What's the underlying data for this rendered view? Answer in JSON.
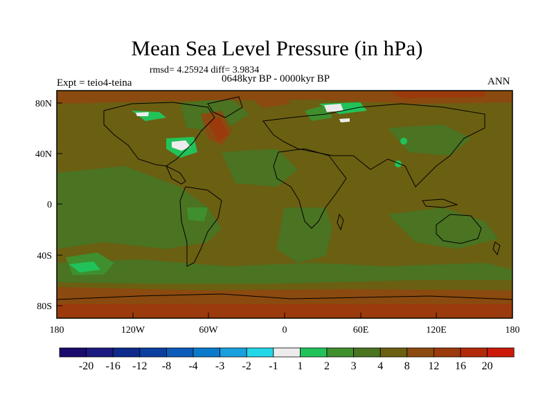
{
  "title": "Mean Sea Level Pressure (in hPa)",
  "stats_text": "rmsd= 4.25924 diff= 3.9834",
  "period_text": "0648kyr BP - 0000kyr BP",
  "expt_text": "Expt = teio4-teina",
  "season_text": "ANN",
  "x_ticks": [
    "180",
    "120W",
    "60W",
    "0",
    "60E",
    "120E",
    "180"
  ],
  "y_ticks": [
    "80N",
    "40N",
    "0",
    "40S",
    "80S"
  ],
  "colorbar": {
    "colors": [
      "#1a0a6b",
      "#1a1a80",
      "#0d2a8c",
      "#0a3fa0",
      "#0b5cb8",
      "#0a7bcc",
      "#1aa0dd",
      "#22d8e8",
      "#ececec",
      "#22c25a",
      "#3f8f2e",
      "#4a7322",
      "#6b5f12",
      "#8b4a0f",
      "#9b3a0c",
      "#b22a0a",
      "#cc1a0a"
    ],
    "labels": [
      "-20",
      "-16",
      "-12",
      "-8",
      "-4",
      "-3",
      "-2",
      "-1",
      "1",
      "2",
      "3",
      "4",
      "8",
      "12",
      "16",
      "20"
    ]
  }
}
